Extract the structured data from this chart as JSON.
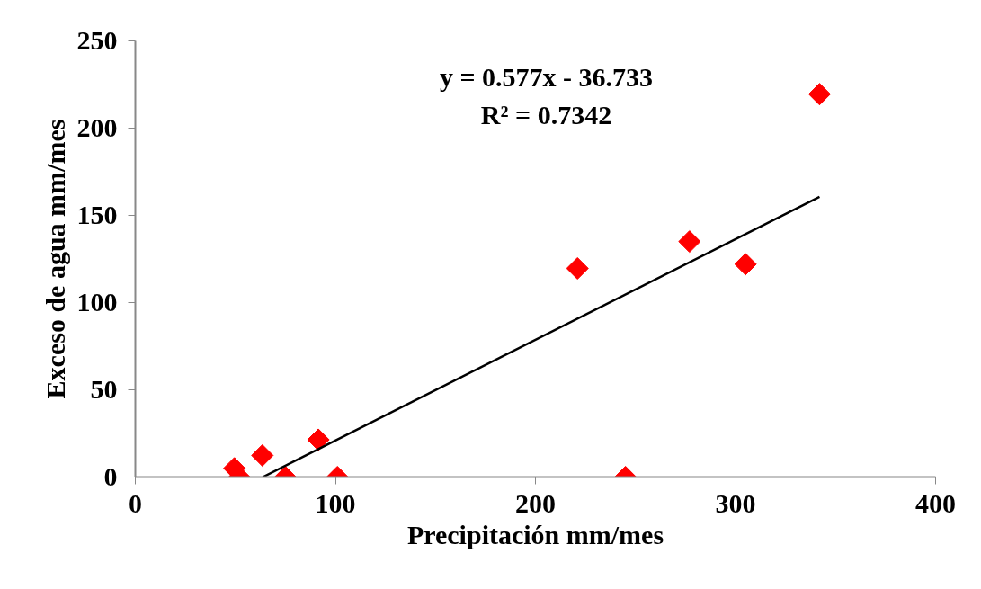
{
  "chart_data": {
    "type": "scatter",
    "xlabel": "Precipitación mm/mes",
    "ylabel": "Exceso de agua mm/mes",
    "annotations": [
      "y = 0.577x - 36.733",
      "R² = 0.7342"
    ],
    "xlim": [
      0,
      400
    ],
    "xticks": [
      0,
      100,
      200,
      300,
      400
    ],
    "ylim": [
      0,
      250
    ],
    "yticks": [
      0,
      50,
      100,
      150,
      200,
      250
    ],
    "grid": false,
    "marker": "diamond",
    "series": [
      {
        "type": "scatter",
        "color": "#ff0000",
        "x": [
          49.5,
          52,
          63.5,
          75,
          91.5,
          101,
          221,
          245,
          277,
          305,
          342
        ],
        "values": [
          5,
          0,
          12.4,
          0,
          21.4,
          0,
          119.6,
          0,
          135,
          122,
          219.5
        ]
      },
      {
        "type": "line",
        "color": "#000000",
        "line_style": "solid",
        "marker": "none",
        "x": [
          63.7,
          342
        ],
        "values": [
          0,
          160.6
        ]
      }
    ]
  }
}
